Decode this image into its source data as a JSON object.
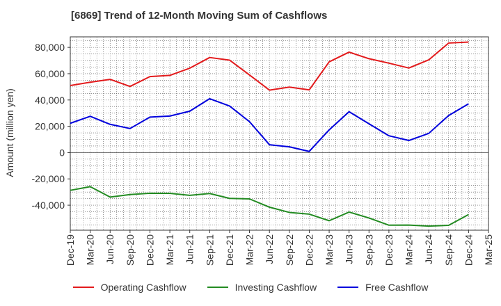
{
  "chart_data": {
    "type": "line",
    "title": "[6869]  Trend of 12-Month Moving Sum of Cashflows",
    "xlabel": "",
    "ylabel": "Amount (million yen)",
    "categories": [
      "Dec-19",
      "Mar-20",
      "Jun-20",
      "Sep-20",
      "Dec-20",
      "Mar-21",
      "Jun-21",
      "Sep-21",
      "Dec-21",
      "Mar-22",
      "Jun-22",
      "Sep-22",
      "Dec-22",
      "Mar-23",
      "Jun-23",
      "Sep-23",
      "Dec-23",
      "Mar-24",
      "Jun-24",
      "Sep-24",
      "Dec-24",
      "Mar-25"
    ],
    "ylim": [
      -59000,
      88000
    ],
    "yticks": [
      80000,
      60000,
      40000,
      20000,
      0,
      -20000,
      -40000
    ],
    "ytick_labels": [
      "80,000",
      "60,000",
      "40,000",
      "20,000",
      "0",
      "-20,000",
      "-40,000"
    ],
    "grid": true,
    "legend_position": "bottom",
    "series": [
      {
        "name": "Operating Cashflow",
        "color": "#e31a1c",
        "values": [
          51000,
          53500,
          55700,
          50300,
          57800,
          58700,
          64200,
          72300,
          70300,
          59000,
          47500,
          49800,
          47700,
          69000,
          76400,
          71400,
          68000,
          64300,
          70500,
          83300,
          84000,
          null
        ]
      },
      {
        "name": "Investing Cashflow",
        "color": "#238b22",
        "values": [
          -28700,
          -25900,
          -33800,
          -31900,
          -30900,
          -31000,
          -32500,
          -31100,
          -34800,
          -35200,
          -41500,
          -45500,
          -46800,
          -51800,
          -45200,
          -49700,
          -55200,
          -55100,
          -55900,
          -55300,
          -47100,
          null
        ]
      },
      {
        "name": "Free Cashflow",
        "color": "#0000dd",
        "values": [
          22300,
          27600,
          21500,
          18300,
          27000,
          27800,
          31500,
          41000,
          35400,
          23500,
          6000,
          4400,
          900,
          17300,
          31100,
          21900,
          12800,
          9200,
          14600,
          28200,
          37100,
          null
        ]
      }
    ]
  }
}
